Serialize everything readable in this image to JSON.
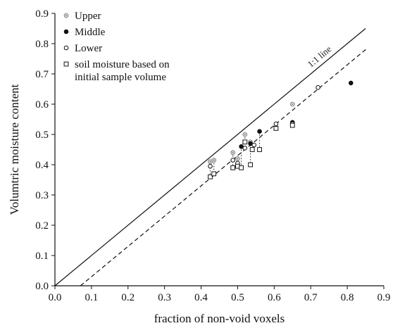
{
  "chart_data": {
    "type": "scatter",
    "title": "",
    "xlabel": "fraction of non-void voxels",
    "ylabel": "Volumtric moisture content",
    "xlim": [
      0.0,
      0.9
    ],
    "ylim": [
      0.0,
      0.9
    ],
    "xticks": [
      "0.0",
      "0.1",
      "0.2",
      "0.3",
      "0.4",
      "0.5",
      "0.6",
      "0.7",
      "0.8",
      "0.9"
    ],
    "yticks": [
      "0.0",
      "0.1",
      "0.2",
      "0.3",
      "0.4",
      "0.5",
      "0.6",
      "0.7",
      "0.8",
      "0.9"
    ],
    "grid": false,
    "legend_position": "top-left",
    "series": [
      {
        "name": "Upper",
        "marker": "circle-grey",
        "color": "#999999",
        "points": [
          {
            "x": 0.425,
            "y": 0.41
          },
          {
            "x": 0.435,
            "y": 0.415
          },
          {
            "x": 0.487,
            "y": 0.44
          },
          {
            "x": 0.5,
            "y": 0.42
          },
          {
            "x": 0.52,
            "y": 0.5
          },
          {
            "x": 0.535,
            "y": 0.475
          },
          {
            "x": 0.65,
            "y": 0.6
          }
        ]
      },
      {
        "name": "Middle",
        "marker": "circle-filled",
        "color": "#111111",
        "points": [
          {
            "x": 0.51,
            "y": 0.46
          },
          {
            "x": 0.535,
            "y": 0.47
          },
          {
            "x": 0.56,
            "y": 0.51
          },
          {
            "x": 0.65,
            "y": 0.54
          },
          {
            "x": 0.81,
            "y": 0.67
          }
        ]
      },
      {
        "name": "Lower",
        "marker": "circle-open",
        "color": "#111111",
        "points": [
          {
            "x": 0.425,
            "y": 0.395
          },
          {
            "x": 0.487,
            "y": 0.415
          },
          {
            "x": 0.5,
            "y": 0.405
          },
          {
            "x": 0.52,
            "y": 0.455
          },
          {
            "x": 0.545,
            "y": 0.465
          },
          {
            "x": 0.605,
            "y": 0.535
          },
          {
            "x": 0.65,
            "y": 0.535
          },
          {
            "x": 0.72,
            "y": 0.655
          }
        ]
      },
      {
        "name": "soil moisture based on initial sample volume",
        "marker": "square-open",
        "color": "#111111",
        "points": [
          {
            "x": 0.425,
            "y": 0.36
          },
          {
            "x": 0.435,
            "y": 0.37
          },
          {
            "x": 0.487,
            "y": 0.39
          },
          {
            "x": 0.5,
            "y": 0.395
          },
          {
            "x": 0.51,
            "y": 0.39
          },
          {
            "x": 0.52,
            "y": 0.475
          },
          {
            "x": 0.535,
            "y": 0.4
          },
          {
            "x": 0.54,
            "y": 0.45
          },
          {
            "x": 0.56,
            "y": 0.45
          },
          {
            "x": 0.605,
            "y": 0.52
          },
          {
            "x": 0.65,
            "y": 0.53
          }
        ]
      }
    ],
    "lines": [
      {
        "name": "1:1 line",
        "style": "solid",
        "x": [
          0.0,
          0.85
        ],
        "y": [
          0.0,
          0.85
        ]
      },
      {
        "name": "",
        "style": "dashed",
        "x": [
          0.07,
          0.855
        ],
        "y": [
          0.0,
          0.785
        ]
      }
    ],
    "connectors": [
      {
        "x": 0.425,
        "y": [
          0.41,
          0.36
        ]
      },
      {
        "x": 0.435,
        "y": [
          0.415,
          0.37
        ]
      },
      {
        "x": 0.487,
        "y": [
          0.44,
          0.39
        ]
      },
      {
        "x": 0.5,
        "y": [
          0.42,
          0.395
        ]
      },
      {
        "x": 0.51,
        "y": [
          0.46,
          0.39
        ]
      },
      {
        "x": 0.52,
        "y": [
          0.5,
          0.455
        ]
      },
      {
        "x": 0.535,
        "y": [
          0.475,
          0.4
        ]
      },
      {
        "x": 0.56,
        "y": [
          0.51,
          0.45
        ]
      }
    ],
    "annotations": [
      {
        "text": "1:1 line",
        "x": 0.7,
        "y": 0.72
      }
    ]
  }
}
